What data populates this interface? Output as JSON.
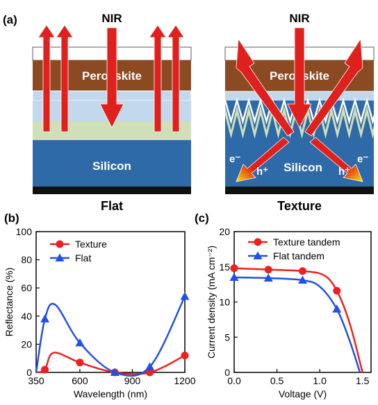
{
  "panels": {
    "a": {
      "label": "(a)",
      "left": {
        "top_label": "NIR",
        "perovskite_label": "Perovskite",
        "silicon_label": "Silicon",
        "caption": "Flat"
      },
      "right": {
        "top_label": "NIR",
        "perovskite_label": "Perovskite",
        "silicon_label": "Silicon",
        "electron_left": "e⁻",
        "hole_left": "h⁺",
        "electron_right": "e⁻",
        "hole_right": "h⁺",
        "caption": "Texture"
      }
    },
    "b": {
      "label": "(b)"
    },
    "c": {
      "label": "(c)"
    }
  },
  "colors": {
    "perovskite": "#8b4a22",
    "top_layer": "#ffffff",
    "light_blue": "#c2d8ec",
    "light_green": "#cfe0b6",
    "silicon": "#2f6aa8",
    "base": "#111111",
    "arrow_red": "#e0201c",
    "arrow_yellow": "#ffe300",
    "series_red": "#ee2020",
    "series_blue": "#2050e8"
  },
  "chart_data": [
    {
      "type": "line",
      "xlabel": "Wavelength (nm)",
      "ylabel": "Reflectance (%)",
      "xlim": [
        350,
        1200
      ],
      "ylim": [
        0,
        100
      ],
      "xticks": [
        350,
        600,
        900,
        1200
      ],
      "yticks": [
        0,
        20,
        40,
        60,
        80,
        100
      ],
      "legend_position": "top-left",
      "series": [
        {
          "name": "Texture",
          "marker": "circle",
          "color": "#ee2020",
          "x": [
            400,
            600,
            800,
            1000,
            1200
          ],
          "y": [
            2,
            7,
            0,
            0,
            12
          ]
        },
        {
          "name": "Flat",
          "marker": "triangle",
          "color": "#2050e8",
          "x": [
            400,
            600,
            800,
            1000,
            1200
          ],
          "y": [
            38,
            21,
            0,
            4,
            54
          ]
        }
      ]
    },
    {
      "type": "line",
      "xlabel": "Voltage (V)",
      "ylabel": "Current density (mA cm⁻²)",
      "xlim": [
        0.0,
        1.6
      ],
      "ylim": [
        0,
        20
      ],
      "xticks": [
        0.0,
        0.5,
        1.0,
        1.5
      ],
      "yticks": [
        0,
        5,
        10,
        15,
        20
      ],
      "legend_position": "top-right",
      "series": [
        {
          "name": "Texture tandem",
          "marker": "circle",
          "color": "#ee2020",
          "x": [
            0.0,
            0.4,
            0.8,
            1.2
          ],
          "y": [
            14.8,
            14.6,
            14.4,
            11.6
          ]
        },
        {
          "name": "Flat tandem",
          "marker": "triangle",
          "color": "#2050e8",
          "x": [
            0.0,
            0.4,
            0.8,
            1.2
          ],
          "y": [
            13.5,
            13.4,
            13.1,
            9.0
          ]
        }
      ]
    }
  ]
}
